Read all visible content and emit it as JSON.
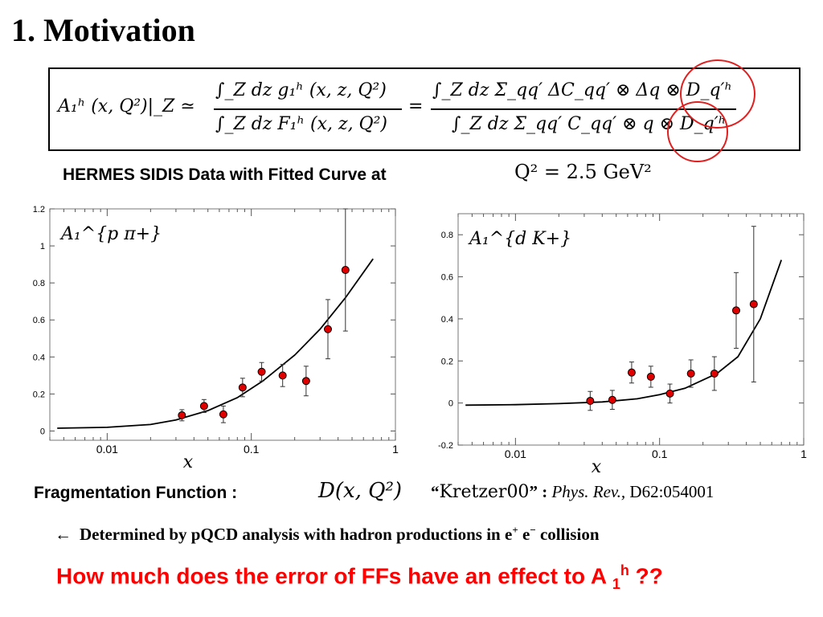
{
  "slide": {
    "title": "1. Motivation",
    "equation": {
      "lhs": "A₁ʰ (x, Q²)|_Z ≃",
      "num1": "∫_Z dz g₁ʰ (x, z, Q²)",
      "den1": "∫_Z dz F₁ʰ (x, z, Q²)",
      "eq": "=",
      "num2": "∫_Z dz Σ_qq′ ΔC_qq′ ⊗ Δq ⊗ D_q′ʰ",
      "den2": "∫_Z dz Σ_qq′ C_qq′ ⊗ q ⊗ D_q′ʰ"
    },
    "subtitle": "HERMES SIDIS Data with Fitted Curve at",
    "q2_text": "Q² = 2.5 GeV²",
    "frag_label": "Fragmentation Function :",
    "frag_function": "D(x, Q²)",
    "ref_open": "“",
    "ref_name": "Kretzer00",
    "ref_close": "” :",
    "ref_journal": "Phys. Rev.,",
    "ref_volume": "D62:054001",
    "determined_arrow": "←",
    "determined_text": "Determined by pQCD analysis with hadron productions in e",
    "determined_sup1": "+",
    "determined_mid": " e",
    "determined_sup2": "−",
    "determined_end": " collision",
    "question_text": "How much does the error of FFs have an effect to A ",
    "question_sub": "1",
    "question_sup": "h",
    "question_end": " ??"
  },
  "chart_data": [
    {
      "type": "scatter",
      "label": "A₁^{p π+}",
      "xscale": "log",
      "xlim": [
        0.004,
        1
      ],
      "ylim": [
        -0.05,
        1.2
      ],
      "xticks": [
        "0.01",
        "0.1",
        "1"
      ],
      "yticks": [
        "0",
        "0.2",
        "0.4",
        "0.6",
        "0.8",
        "1",
        "1.2"
      ],
      "xlabel": "x",
      "points": [
        {
          "x": 0.033,
          "y": 0.085,
          "err": 0.03
        },
        {
          "x": 0.047,
          "y": 0.135,
          "err": 0.035
        },
        {
          "x": 0.064,
          "y": 0.09,
          "err": 0.045
        },
        {
          "x": 0.087,
          "y": 0.235,
          "err": 0.05
        },
        {
          "x": 0.118,
          "y": 0.32,
          "err": 0.05
        },
        {
          "x": 0.165,
          "y": 0.3,
          "err": 0.06
        },
        {
          "x": 0.24,
          "y": 0.27,
          "err": 0.08
        },
        {
          "x": 0.34,
          "y": 0.55,
          "err": 0.16
        },
        {
          "x": 0.45,
          "y": 0.87,
          "err": 0.33
        }
      ],
      "curve": [
        [
          0.0045,
          0.015
        ],
        [
          0.01,
          0.02
        ],
        [
          0.02,
          0.035
        ],
        [
          0.03,
          0.06
        ],
        [
          0.05,
          0.11
        ],
        [
          0.08,
          0.18
        ],
        [
          0.12,
          0.27
        ],
        [
          0.2,
          0.41
        ],
        [
          0.3,
          0.55
        ],
        [
          0.45,
          0.72
        ],
        [
          0.7,
          0.93
        ]
      ]
    },
    {
      "type": "scatter",
      "label": "A₁^{d K+}",
      "xscale": "log",
      "xlim": [
        0.004,
        1
      ],
      "ylim": [
        -0.2,
        0.9
      ],
      "xticks": [
        "0.01",
        "0.1",
        "1"
      ],
      "yticks": [
        "-0.2",
        "0",
        "0.2",
        "0.4",
        "0.6",
        "0.8"
      ],
      "xlabel": "x",
      "points": [
        {
          "x": 0.033,
          "y": 0.01,
          "err": 0.045
        },
        {
          "x": 0.047,
          "y": 0.015,
          "err": 0.045
        },
        {
          "x": 0.064,
          "y": 0.145,
          "err": 0.05
        },
        {
          "x": 0.087,
          "y": 0.125,
          "err": 0.05
        },
        {
          "x": 0.118,
          "y": 0.045,
          "err": 0.045
        },
        {
          "x": 0.165,
          "y": 0.14,
          "err": 0.065
        },
        {
          "x": 0.24,
          "y": 0.14,
          "err": 0.08
        },
        {
          "x": 0.34,
          "y": 0.44,
          "err": 0.18
        },
        {
          "x": 0.45,
          "y": 0.47,
          "err": 0.37
        }
      ],
      "curve": [
        [
          0.0045,
          -0.01
        ],
        [
          0.01,
          -0.008
        ],
        [
          0.02,
          -0.003
        ],
        [
          0.04,
          0.005
        ],
        [
          0.07,
          0.02
        ],
        [
          0.1,
          0.04
        ],
        [
          0.15,
          0.07
        ],
        [
          0.25,
          0.14
        ],
        [
          0.35,
          0.22
        ],
        [
          0.5,
          0.4
        ],
        [
          0.7,
          0.68
        ]
      ]
    }
  ]
}
